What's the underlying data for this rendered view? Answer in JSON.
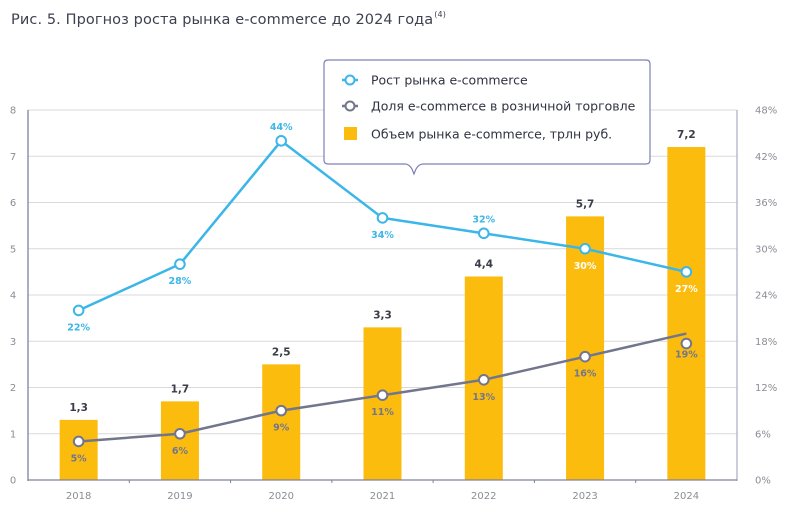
{
  "title": {
    "text": "Рис. 5. Прогноз роста рынка e-commerce до 2024 года",
    "footnote": "(4)"
  },
  "colors": {
    "bar": "#fbbc0e",
    "growth_line": "#3bb6e8",
    "share_line": "#71768d",
    "grid": "#d9d9d9",
    "axis": "#7e829b",
    "legend_border": "#7d80b8",
    "label_on_bar": "#ffffff"
  },
  "chart_data": {
    "type": "bar",
    "title": "Рис. 5. Прогноз роста рынка e-commerce до 2024 года",
    "categories": [
      "2018",
      "2019",
      "2020",
      "2021",
      "2022",
      "2023",
      "2024"
    ],
    "series": [
      {
        "name": "Объем рынка e-commerce, трлн руб.",
        "type": "bar",
        "axis": "left",
        "values": [
          1.3,
          1.7,
          2.5,
          3.3,
          4.4,
          5.7,
          7.2
        ],
        "labels": [
          "1,3",
          "1,7",
          "2,5",
          "3,3",
          "4,4",
          "5,7",
          "7,2"
        ]
      },
      {
        "name": "Рост рынка e-commerce",
        "type": "line",
        "axis": "right",
        "values": [
          22,
          28,
          44,
          34,
          32,
          30,
          27
        ],
        "labels": [
          "22%",
          "28%",
          "44%",
          "34%",
          "32%",
          "30%",
          "27%"
        ],
        "label_position": [
          "below",
          "below",
          "above",
          "below",
          "above",
          "below",
          "below"
        ]
      },
      {
        "name": "Доля e-commerce в розничной торговле",
        "type": "line",
        "axis": "right",
        "values": [
          5,
          6,
          9,
          11,
          13,
          16,
          19
        ],
        "labels": [
          "5%",
          "6%",
          "9%",
          "11%",
          "13%",
          "16%",
          "19%"
        ]
      }
    ],
    "left_axis": {
      "ylim": [
        0,
        8
      ],
      "ticks": [
        "0",
        "1",
        "2",
        "3",
        "4",
        "5",
        "6",
        "7",
        "8"
      ]
    },
    "right_axis": {
      "ylim": [
        0,
        48
      ],
      "ticks": [
        "0%",
        "6%",
        "12%",
        "18%",
        "24%",
        "30%",
        "36%",
        "42%",
        "48%"
      ]
    },
    "xlabel": "",
    "ylabel": "",
    "grid": true,
    "legend": {
      "placement": "top-center",
      "entries": [
        {
          "label": "Рост рынка e-commerce",
          "marker": "circle-line",
          "series": 1
        },
        {
          "label": "Доля e-commerce в розничной торговле",
          "marker": "circle-line",
          "series": 2
        },
        {
          "label": "Объем рынка e-commerce, трлн руб.",
          "marker": "square",
          "series": 0
        }
      ]
    }
  }
}
